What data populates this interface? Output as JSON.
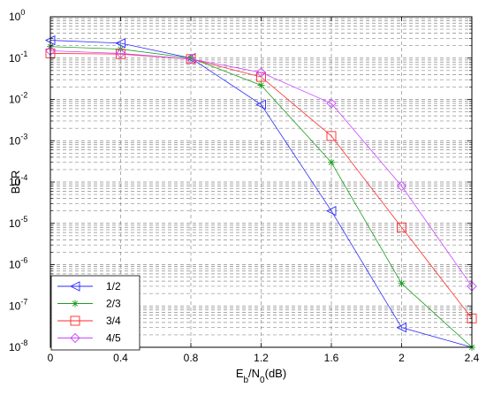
{
  "chart_data": {
    "type": "line",
    "title": "",
    "xlabel": "E_b/N_0(dB)",
    "ylabel": "BER",
    "xlim": [
      0,
      2.4
    ],
    "ylim": [
      1e-08,
      1
    ],
    "yscale": "log",
    "grid": true,
    "legend_position": "bottom-left",
    "x_ticks": [
      "0",
      "0.4",
      "0.8",
      "1.2",
      "1.6",
      "2",
      "2.4"
    ],
    "y_ticks": [
      {
        "base": "10",
        "exp": "0",
        "value": 1
      },
      {
        "base": "10",
        "exp": "-1",
        "value": 0.1
      },
      {
        "base": "10",
        "exp": "-2",
        "value": 0.01
      },
      {
        "base": "10",
        "exp": "-3",
        "value": 0.001
      },
      {
        "base": "10",
        "exp": "-4",
        "value": 0.0001
      },
      {
        "base": "10",
        "exp": "-5",
        "value": 1e-05
      },
      {
        "base": "10",
        "exp": "-6",
        "value": 1e-06
      },
      {
        "base": "10",
        "exp": "-7",
        "value": 1e-07
      },
      {
        "base": "10",
        "exp": "-8",
        "value": 1e-08
      }
    ],
    "series": [
      {
        "name": "1/2",
        "color": "#2a2aff",
        "marker": "triangle-left",
        "x": [
          0,
          0.4,
          0.8,
          1.2,
          1.6,
          2.0,
          2.4
        ],
        "y": [
          0.27,
          0.23,
          0.1,
          0.0075,
          2e-05,
          3e-08,
          5.5e-09
        ]
      },
      {
        "name": "2/3",
        "color": "#1e9e1e",
        "marker": "star",
        "x": [
          0,
          0.4,
          0.8,
          1.2,
          1.6,
          2.0,
          2.4
        ],
        "y": [
          0.19,
          0.165,
          0.1,
          0.022,
          0.0003,
          3.5e-07,
          1e-08
        ]
      },
      {
        "name": "3/4",
        "color": "#ff2a2a",
        "marker": "square",
        "x": [
          0,
          0.4,
          0.8,
          1.2,
          1.6,
          2.0,
          2.4
        ],
        "y": [
          0.13,
          0.125,
          0.095,
          0.035,
          0.0013,
          8e-06,
          5e-08
        ]
      },
      {
        "name": "4/5",
        "color": "#cc44ff",
        "marker": "diamond",
        "x": [
          0,
          0.4,
          0.8,
          1.2,
          1.6,
          2.0,
          2.4
        ],
        "y": [
          0.15,
          0.13,
          0.095,
          0.045,
          0.008,
          8e-05,
          3e-07
        ]
      }
    ]
  }
}
